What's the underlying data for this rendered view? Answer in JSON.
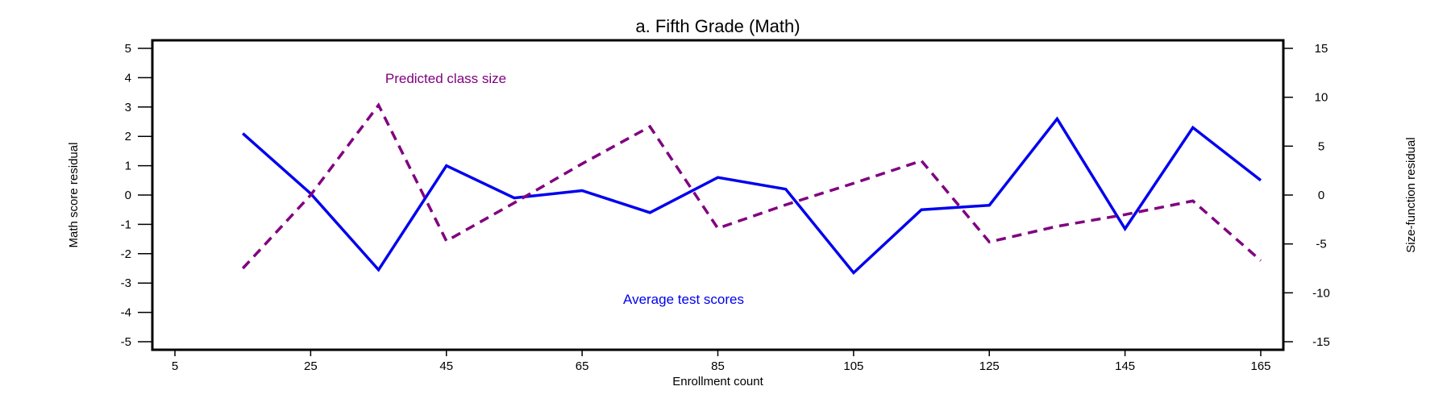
{
  "chart_data": {
    "type": "line",
    "title": "a. Fifth Grade (Math)",
    "xlabel": "Enrollment count",
    "ylabel": "Math score residual",
    "y2label": "Size-function residual",
    "xlim": [
      5,
      165
    ],
    "ylim": [
      -5,
      5
    ],
    "y2lim": [
      -15,
      15
    ],
    "xticks": [
      5,
      25,
      45,
      65,
      85,
      105,
      125,
      145,
      165
    ],
    "yticks": [
      5,
      4,
      3,
      2,
      1,
      0,
      -1,
      -2,
      -3,
      -4,
      -5
    ],
    "y2ticks": [
      15,
      10,
      5,
      0,
      -5,
      -10,
      -15
    ],
    "grid": false,
    "series": [
      {
        "name": "Average test scores",
        "axis": "left",
        "style": "solid",
        "color": "#0000ee",
        "x": [
          15,
          25,
          35,
          45,
          55,
          65,
          75,
          85,
          95,
          105,
          115,
          125,
          135,
          145,
          155,
          165
        ],
        "values": [
          2.1,
          0.05,
          -2.55,
          1.0,
          -0.1,
          0.15,
          -0.6,
          0.6,
          0.2,
          -2.65,
          -0.5,
          -0.35,
          2.6,
          -1.15,
          2.3,
          0.5
        ]
      },
      {
        "name": "Predicted class size",
        "axis": "right",
        "style": "dashed",
        "color": "#800080",
        "x": [
          15,
          25,
          35,
          45,
          55,
          65,
          75,
          85,
          95,
          105,
          115,
          125,
          135,
          145,
          155,
          165
        ],
        "values": [
          -7.5,
          0.0,
          9.2,
          -4.7,
          -0.8,
          3.2,
          7.0,
          -3.4,
          -1.0,
          1.2,
          3.5,
          -4.8,
          -3.2,
          -2.0,
          -0.6,
          -6.7
        ]
      }
    ],
    "annotations": [
      {
        "text": "Predicted class size",
        "color": "#800080",
        "placement": "upper-left, above the dashed line peak"
      },
      {
        "text": "Average test scores",
        "color": "#0000ee",
        "placement": "lower-center"
      }
    ]
  }
}
